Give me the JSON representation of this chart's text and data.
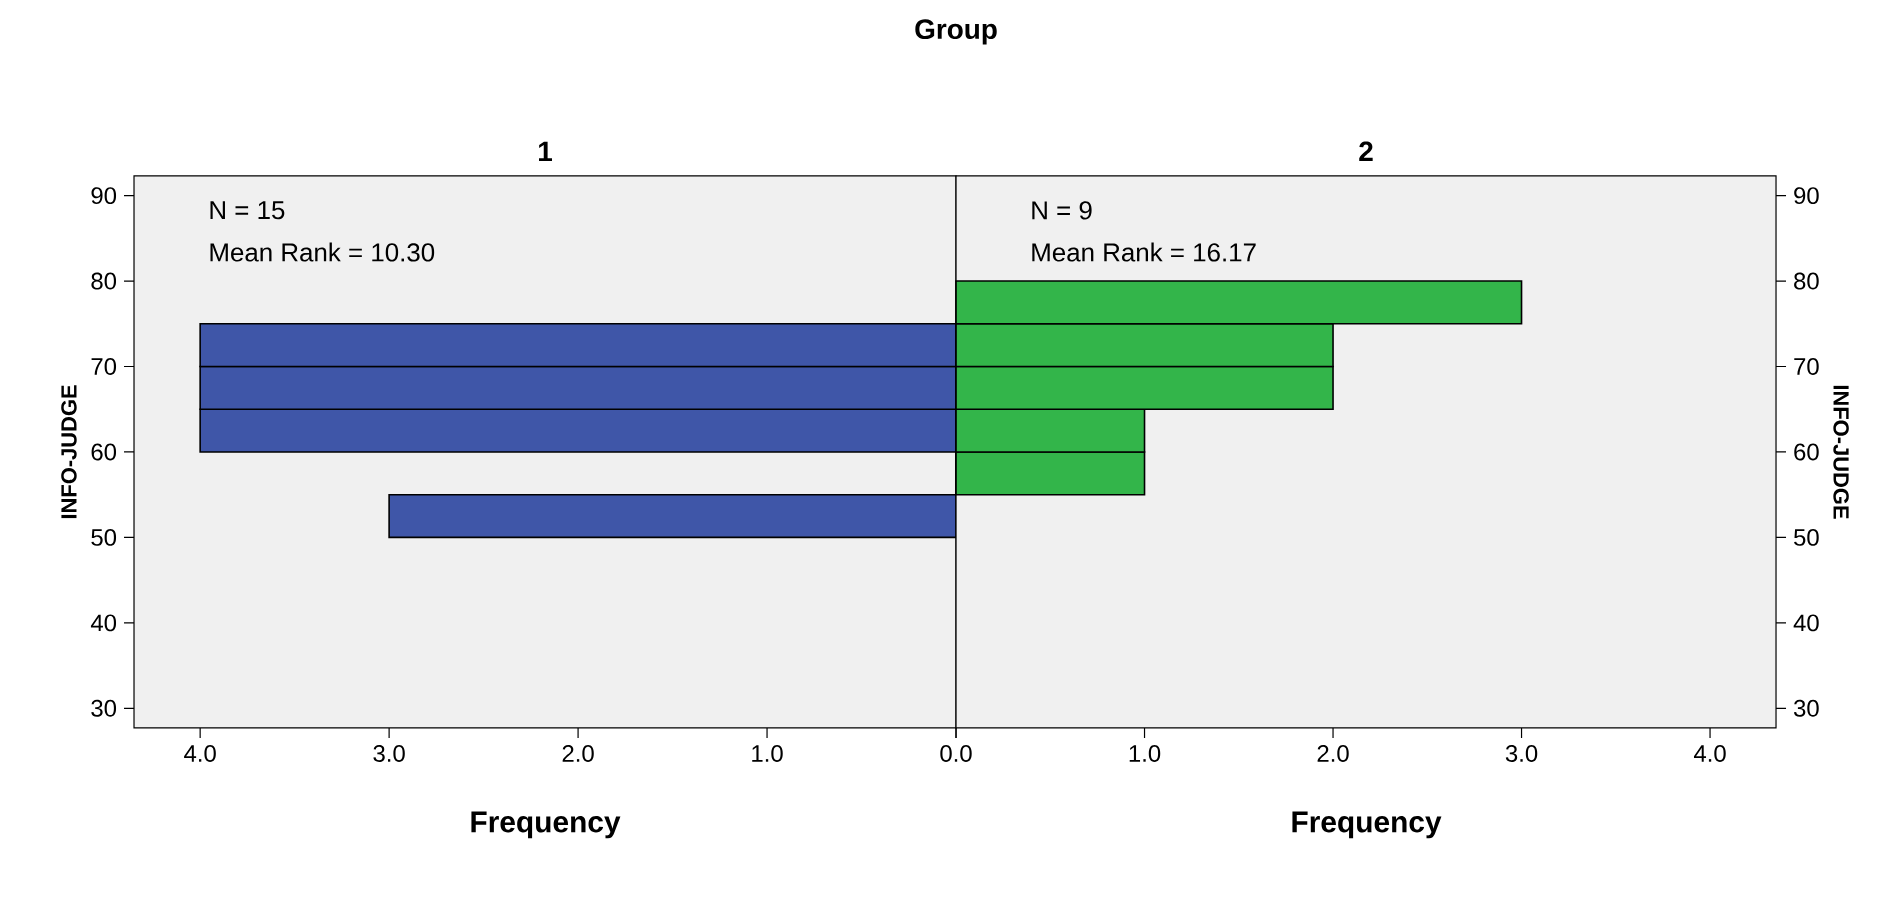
{
  "chart_data": [
    {
      "type": "histogram",
      "orientation": "horizontal",
      "title": "Group",
      "subtitle": "1",
      "xlabel": "Frequency",
      "ylabel": "INFO-JUDGE",
      "bins": [
        50,
        55,
        60,
        65,
        70,
        75
      ],
      "values": [
        3,
        0,
        4,
        4,
        4
      ],
      "color": "#3f56a8",
      "xlim": [
        4.35,
        0
      ],
      "xticks": [
        {
          "value": 4,
          "label": "4.0"
        },
        {
          "value": 3,
          "label": "3.0"
        },
        {
          "value": 2,
          "label": "2.0"
        },
        {
          "value": 1,
          "label": "1.0"
        },
        {
          "value": 0,
          "label": "0.0"
        }
      ],
      "ylim": [
        27.7,
        92.3
      ],
      "yticks": [
        30,
        40,
        50,
        60,
        70,
        80,
        90
      ],
      "annotations": [
        "N = 15",
        "Mean Rank = 10.30"
      ]
    },
    {
      "type": "histogram",
      "orientation": "horizontal",
      "subtitle": "2",
      "xlabel": "Frequency",
      "ylabel": "INFO-JUDGE",
      "bins": [
        55,
        60,
        65,
        70,
        75,
        80
      ],
      "values": [
        1,
        1,
        2,
        2,
        3
      ],
      "color": "#33b54a",
      "xlim": [
        0,
        4.35
      ],
      "xticks": [
        {
          "value": 0,
          "label": null
        },
        {
          "value": 1,
          "label": "1.0"
        },
        {
          "value": 2,
          "label": "2.0"
        },
        {
          "value": 3,
          "label": "3.0"
        },
        {
          "value": 4,
          "label": "4.0"
        }
      ],
      "ylim": [
        27.7,
        92.3
      ],
      "yticks": [
        30,
        40,
        50,
        60,
        70,
        80,
        90
      ],
      "annotations": [
        "N = 9",
        "Mean Rank = 16.17"
      ]
    }
  ]
}
